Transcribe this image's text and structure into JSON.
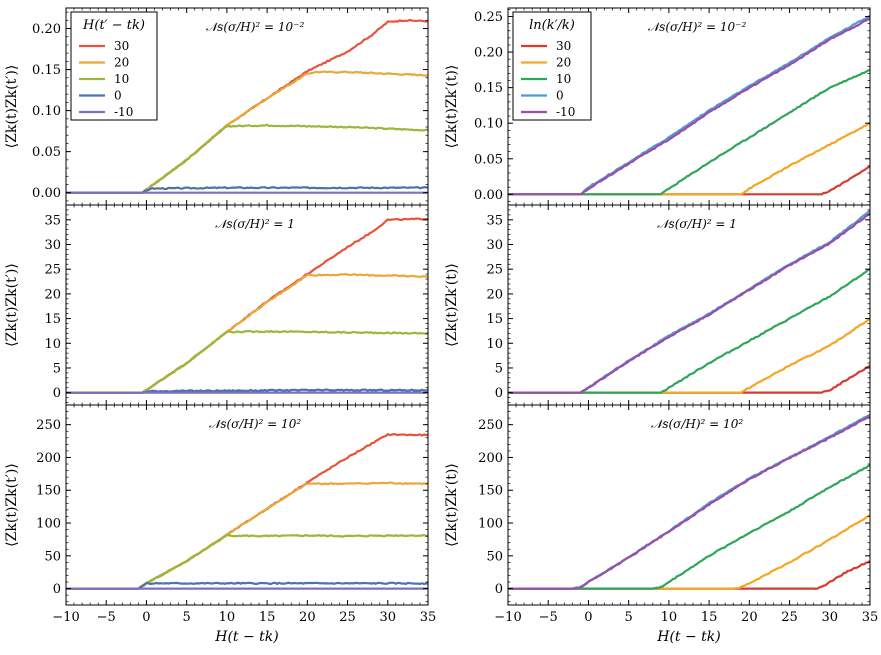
{
  "chart_data": [
    {
      "type": "line",
      "column": 0,
      "row": 0,
      "annotation": "𝒩s(σ/H)² = 10⁻²",
      "xlabel": "",
      "ylabel": "⟨Zk(t)Zk(t′)⟩",
      "xlim": [
        -10,
        35
      ],
      "ylim": [
        -0.015,
        0.225
      ],
      "yticks": [
        0.0,
        0.05,
        0.1,
        0.15,
        0.2
      ],
      "ytick_labels": [
        "0.00",
        "0.05",
        "0.10",
        "0.15",
        "0.20"
      ],
      "legend": {
        "title": "H(t′ − tk)",
        "placement": "top-left"
      },
      "series": [
        {
          "name": "30",
          "color": "#e8543a",
          "x": [
            -10,
            -0.5,
            5,
            10,
            15,
            20,
            25,
            28,
            30,
            32,
            35
          ],
          "y": [
            0,
            0,
            0.04,
            0.082,
            0.115,
            0.148,
            0.172,
            0.192,
            0.208,
            0.21,
            0.209
          ]
        },
        {
          "name": "20",
          "color": "#e8a83a",
          "x": [
            -10,
            -0.5,
            5,
            10,
            15,
            20,
            21,
            25,
            30,
            35
          ],
          "y": [
            0,
            0,
            0.04,
            0.082,
            0.115,
            0.145,
            0.147,
            0.147,
            0.145,
            0.143
          ]
        },
        {
          "name": "10",
          "color": "#9ab73e",
          "x": [
            -10,
            -0.5,
            5,
            10,
            15,
            20,
            25,
            30,
            35
          ],
          "y": [
            0,
            0,
            0.04,
            0.081,
            0.082,
            0.081,
            0.08,
            0.078,
            0.076
          ]
        },
        {
          "name": "0",
          "color": "#4c72b0",
          "x": [
            -10,
            -0.5,
            0.5,
            10,
            20,
            30,
            35
          ],
          "y": [
            0,
            0,
            0.005,
            0.006,
            0.006,
            0.006,
            0.006
          ]
        },
        {
          "name": "-10",
          "color": "#7b6fc4",
          "x": [
            -10,
            35
          ],
          "y": [
            0,
            0
          ]
        }
      ]
    },
    {
      "type": "line",
      "column": 0,
      "row": 1,
      "annotation": "𝒩s(σ/H)² = 1",
      "xlabel": "",
      "ylabel": "⟨Zk(t)Zk(t′)⟩",
      "xlim": [
        -10,
        35
      ],
      "ylim": [
        -2.5,
        38
      ],
      "yticks": [
        0,
        5,
        10,
        15,
        20,
        25,
        30,
        35
      ],
      "ytick_labels": [
        "0",
        "5",
        "10",
        "15",
        "20",
        "25",
        "30",
        "35"
      ],
      "series": [
        {
          "name": "30",
          "color": "#e8543a",
          "x": [
            -10,
            -0.5,
            5,
            10,
            15,
            20,
            25,
            28,
            30,
            35
          ],
          "y": [
            0,
            0,
            6.0,
            12.3,
            18.5,
            24.0,
            29.5,
            32.5,
            35.0,
            35.2
          ]
        },
        {
          "name": "20",
          "color": "#e8a83a",
          "x": [
            -10,
            -0.5,
            5,
            10,
            15,
            20,
            25,
            30,
            35
          ],
          "y": [
            0,
            0,
            6.0,
            12.3,
            18.3,
            23.8,
            23.9,
            23.7,
            23.5
          ]
        },
        {
          "name": "10",
          "color": "#9ab73e",
          "x": [
            -10,
            -0.5,
            5,
            10,
            15,
            20,
            25,
            30,
            35
          ],
          "y": [
            0,
            0,
            6.0,
            12.3,
            12.4,
            12.3,
            12.2,
            12.1,
            12.0
          ]
        },
        {
          "name": "0",
          "color": "#4c72b0",
          "x": [
            -10,
            -0.5,
            0.5,
            10,
            20,
            35
          ],
          "y": [
            0,
            0,
            0.3,
            0.4,
            0.5,
            0.5
          ]
        },
        {
          "name": "-10",
          "color": "#7b6fc4",
          "x": [
            -10,
            35
          ],
          "y": [
            0,
            0
          ]
        }
      ]
    },
    {
      "type": "line",
      "column": 0,
      "row": 2,
      "annotation": "𝒩s(σ/H)² = 10²",
      "xlabel": "H(t − tk)",
      "ylabel": "⟨Zk(t)Zk(t′)⟩",
      "xlim": [
        -10,
        35
      ],
      "ylim": [
        -25,
        280
      ],
      "yticks": [
        0,
        50,
        100,
        150,
        200,
        250
      ],
      "ytick_labels": [
        "0",
        "50",
        "100",
        "150",
        "200",
        "250"
      ],
      "xticks": [
        -10,
        -5,
        0,
        5,
        10,
        15,
        20,
        25,
        30,
        35
      ],
      "xtick_labels": [
        "−10",
        "−5",
        "0",
        "5",
        "10",
        "15",
        "20",
        "25",
        "30",
        "35"
      ],
      "series": [
        {
          "name": "30",
          "color": "#e8543a",
          "x": [
            -10,
            -1,
            0,
            5,
            10,
            15,
            20,
            25,
            30,
            35
          ],
          "y": [
            0,
            0,
            8,
            42,
            82,
            122,
            162,
            200,
            235,
            234
          ]
        },
        {
          "name": "20",
          "color": "#e8a83a",
          "x": [
            -10,
            -1,
            0,
            5,
            10,
            15,
            20,
            25,
            30,
            35
          ],
          "y": [
            0,
            0,
            8,
            42,
            82,
            122,
            160,
            160,
            161,
            160
          ]
        },
        {
          "name": "10",
          "color": "#9ab73e",
          "x": [
            -10,
            -1,
            0,
            5,
            10,
            15,
            20,
            25,
            30,
            35
          ],
          "y": [
            0,
            0,
            8,
            42,
            81,
            80,
            81,
            80,
            81,
            81
          ]
        },
        {
          "name": "0",
          "color": "#4c72b0",
          "x": [
            -10,
            -1,
            0,
            10,
            20,
            35
          ],
          "y": [
            0,
            0,
            8,
            8,
            8,
            8
          ]
        },
        {
          "name": "-10",
          "color": "#7b6fc4",
          "x": [
            -10,
            35
          ],
          "y": [
            0,
            0
          ]
        }
      ]
    },
    {
      "type": "line",
      "column": 1,
      "row": 0,
      "annotation": "𝒩s(σ/H)² = 10⁻²",
      "xlabel": "",
      "ylabel": "⟨Zk(t)Zk′(t)⟩",
      "xlim": [
        -10,
        35
      ],
      "ylim": [
        -0.015,
        0.262
      ],
      "yticks": [
        0.0,
        0.05,
        0.1,
        0.15,
        0.2,
        0.25
      ],
      "ytick_labels": [
        "0.00",
        "0.05",
        "0.10",
        "0.15",
        "0.20",
        "0.25"
      ],
      "legend": {
        "title": "ln(k′/k)",
        "placement": "top-left"
      },
      "series": [
        {
          "name": "30",
          "color": "#d63c30",
          "x": [
            -10,
            29,
            30,
            32,
            35
          ],
          "y": [
            0,
            0,
            0.005,
            0.018,
            0.04
          ]
        },
        {
          "name": "20",
          "color": "#f5a623",
          "x": [
            -10,
            19,
            20,
            25,
            30,
            35
          ],
          "y": [
            0,
            0,
            0.008,
            0.04,
            0.07,
            0.1
          ]
        },
        {
          "name": "10",
          "color": "#2fa65a",
          "x": [
            -10,
            9,
            10,
            15,
            20,
            25,
            30,
            35
          ],
          "y": [
            0,
            0,
            0.008,
            0.045,
            0.08,
            0.115,
            0.15,
            0.175
          ]
        },
        {
          "name": "0",
          "color": "#4d9bd6",
          "x": [
            -10,
            -1,
            0,
            5,
            10,
            15,
            20,
            25,
            30,
            35
          ],
          "y": [
            0,
            0,
            0.01,
            0.045,
            0.08,
            0.118,
            0.152,
            0.185,
            0.22,
            0.251
          ]
        },
        {
          "name": "-10",
          "color": "#9b4ea8",
          "x": [
            -10,
            -1,
            0,
            5,
            10,
            15,
            20,
            25,
            30,
            35
          ],
          "y": [
            0,
            0,
            0.008,
            0.043,
            0.077,
            0.115,
            0.15,
            0.182,
            0.218,
            0.247
          ]
        }
      ]
    },
    {
      "type": "line",
      "column": 1,
      "row": 1,
      "annotation": "𝒩s(σ/H)² = 1",
      "xlabel": "",
      "ylabel": "⟨Zk(t)Zk′(t)⟩",
      "xlim": [
        -10,
        35
      ],
      "ylim": [
        -2.5,
        38
      ],
      "yticks": [
        0,
        5,
        10,
        15,
        20,
        25,
        30,
        35
      ],
      "ytick_labels": [
        "0",
        "5",
        "10",
        "15",
        "20",
        "25",
        "30",
        "35"
      ],
      "series": [
        {
          "name": "30",
          "color": "#d63c30",
          "x": [
            -10,
            29,
            30,
            32,
            35
          ],
          "y": [
            0,
            0,
            0.5,
            2.5,
            5.5
          ]
        },
        {
          "name": "20",
          "color": "#f5a623",
          "x": [
            -10,
            19,
            20,
            25,
            30,
            35
          ],
          "y": [
            0,
            0,
            1.0,
            5.5,
            9.5,
            15.0
          ]
        },
        {
          "name": "10",
          "color": "#2fa65a",
          "x": [
            -10,
            9,
            10,
            15,
            20,
            25,
            30,
            35
          ],
          "y": [
            0,
            0,
            1.0,
            6.0,
            10.5,
            15.0,
            19.5,
            25.0
          ]
        },
        {
          "name": "0",
          "color": "#4d9bd6",
          "x": [
            -10,
            -1,
            0,
            5,
            10,
            15,
            20,
            25,
            30,
            35
          ],
          "y": [
            0,
            0,
            1.0,
            6.5,
            11.5,
            16.0,
            21.0,
            26.0,
            30.5,
            36.8
          ]
        },
        {
          "name": "-10",
          "color": "#9b4ea8",
          "x": [
            -10,
            -1,
            0,
            5,
            10,
            15,
            20,
            25,
            30,
            35
          ],
          "y": [
            0,
            0,
            1.0,
            6.3,
            11.3,
            15.8,
            20.8,
            25.8,
            30.2,
            36.3
          ]
        }
      ]
    },
    {
      "type": "line",
      "column": 1,
      "row": 2,
      "annotation": "𝒩s(σ/H)² = 10²",
      "xlabel": "H(t − tk)",
      "ylabel": "⟨Zk(t)Zk′(t)⟩",
      "xlim": [
        -10,
        35
      ],
      "ylim": [
        -25,
        280
      ],
      "yticks": [
        0,
        50,
        100,
        150,
        200,
        250
      ],
      "ytick_labels": [
        "0",
        "50",
        "100",
        "150",
        "200",
        "250"
      ],
      "xticks": [
        -10,
        -5,
        0,
        5,
        10,
        15,
        20,
        25,
        30,
        35
      ],
      "xtick_labels": [
        "−10",
        "−5",
        "0",
        "5",
        "10",
        "15",
        "20",
        "25",
        "30",
        "35"
      ],
      "series": [
        {
          "name": "30",
          "color": "#d63c30",
          "x": [
            -10,
            28,
            29,
            30,
            32,
            35
          ],
          "y": [
            0,
            0,
            2,
            10,
            25,
            42
          ]
        },
        {
          "name": "20",
          "color": "#f5a623",
          "x": [
            -10,
            18,
            19,
            20,
            25,
            30,
            35
          ],
          "y": [
            0,
            0,
            2,
            8,
            40,
            75,
            112
          ]
        },
        {
          "name": "10",
          "color": "#2fa65a",
          "x": [
            -10,
            8,
            9,
            10,
            15,
            20,
            25,
            30,
            35
          ],
          "y": [
            0,
            0,
            2,
            10,
            50,
            85,
            118,
            155,
            188
          ]
        },
        {
          "name": "0",
          "color": "#4d9bd6",
          "x": [
            -10,
            -2,
            -1,
            0,
            5,
            10,
            15,
            20,
            25,
            30,
            35
          ],
          "y": [
            0,
            0,
            2,
            10,
            48,
            88,
            130,
            168,
            200,
            232,
            265
          ]
        },
        {
          "name": "-10",
          "color": "#9b4ea8",
          "x": [
            -10,
            -2,
            -1,
            0,
            5,
            10,
            15,
            20,
            25,
            30,
            35
          ],
          "y": [
            0,
            0,
            2,
            10,
            47,
            87,
            128,
            167,
            199,
            230,
            263
          ]
        }
      ]
    }
  ]
}
